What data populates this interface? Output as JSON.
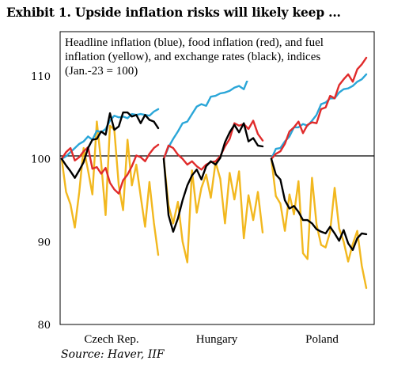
{
  "header": {
    "title": "Exhibit 1. Upside inflation risks will likely keep ..."
  },
  "footer": {
    "source": "Source: Haver, IIF"
  },
  "chart_data": {
    "type": "line",
    "title": "Headline inflation (blue), food inflation (red), and fuel inflation (yellow), and exchange rates (black), indices (Jan.-23 = 100)",
    "title_lines": [
      "Headline inflation (blue), food inflation (red),  and fuel",
      "inflation (yellow), and exchange rates (black), indices",
      "(Jan.-23 = 100)"
    ],
    "ylim": [
      80,
      110
    ],
    "yticks": [
      80,
      90,
      100,
      110
    ],
    "baseline": 100,
    "grid": false,
    "categories": [
      "Czech Rep.",
      "Hungary",
      "Poland"
    ],
    "series_colors": {
      "headline": "#2aa6d8",
      "food": "#e02b2b",
      "fuel": "#f2b81f",
      "fx": "#000000"
    },
    "panels": [
      {
        "category": "Czech Rep.",
        "headline": [
          100,
          100.3,
          100.8,
          101.3,
          101.8,
          102.1,
          102.7,
          102.3,
          103.4,
          103.2,
          103.6,
          104.6,
          105.2,
          105.0,
          105.1,
          104.9,
          105.4,
          105.3,
          105.4,
          105.3,
          105.2,
          105.7,
          106.0
        ],
        "food": [
          100,
          100.8,
          101.3,
          99.8,
          100.2,
          100.9,
          101.4,
          98.8,
          99.0,
          98.2,
          98.9,
          97.1,
          96.3,
          95.8,
          97.4,
          98.1,
          99.1,
          100.4,
          100.2,
          99.7,
          100.6,
          101.3,
          101.7
        ],
        "fuel": [
          100,
          96.0,
          94.5,
          91.7,
          96.0,
          101.3,
          98.6,
          95.7,
          104.5,
          99.5,
          93.2,
          104.0,
          103.5,
          96.8,
          93.8,
          102.3,
          96.8,
          99.3,
          95.5,
          91.8,
          97.2,
          92.3,
          88.4
        ],
        "fx": [
          100,
          99.2,
          98.5,
          97.7,
          98.6,
          99.6,
          101.3,
          102.3,
          102.4,
          103.3,
          102.9,
          105.5,
          103.5,
          103.9,
          105.6,
          105.6,
          105.1,
          105.3,
          104.3,
          105.3,
          104.7,
          104.5,
          103.7
        ]
      },
      {
        "category": "Hungary",
        "headline": [
          100,
          101.4,
          102.4,
          103.3,
          104.3,
          104.5,
          105.4,
          106.3,
          106.6,
          106.4,
          107.5,
          107.6,
          107.9,
          108.0,
          108.2,
          108.6,
          108.8,
          108.4,
          109.8,
          110.4,
          110.7,
          111.0
        ],
        "food": [
          100,
          101.6,
          101.3,
          100.5,
          100.0,
          99.3,
          99.7,
          99.1,
          98.7,
          99.3,
          99.6,
          99.7,
          100.3,
          101.5,
          102.4,
          104.3,
          104.0,
          104.2,
          103.6,
          104.6,
          103.0,
          102.2
        ],
        "fuel": [
          100,
          94.4,
          92.2,
          94.8,
          90.0,
          87.5,
          98.6,
          93.5,
          96.5,
          98.1,
          95.3,
          99.6,
          97.6,
          92.2,
          98.3,
          95.1,
          98.5,
          90.4,
          95.6,
          92.6,
          96.0,
          91.1
        ],
        "fx": [
          100,
          93.2,
          91.2,
          92.8,
          95.0,
          96.8,
          98.0,
          98.7,
          97.5,
          99.1,
          99.7,
          99.3,
          100.1,
          102.0,
          103.2,
          104.1,
          103.2,
          104.3,
          102.1,
          102.5,
          101.6,
          101.5
        ]
      },
      {
        "category": "Poland",
        "headline": [
          100,
          101.2,
          101.3,
          102.1,
          102.7,
          103.8,
          103.8,
          104.2,
          104.0,
          104.6,
          105.3,
          106.6,
          106.8,
          107.3,
          107.3,
          108.0,
          108.4,
          108.5,
          108.8,
          109.3,
          109.6,
          110.2
        ],
        "food": [
          100,
          100.6,
          100.9,
          101.8,
          103.3,
          103.8,
          104.5,
          103.1,
          104.1,
          104.4,
          104.3,
          106.0,
          106.2,
          107.6,
          107.3,
          108.9,
          109.6,
          110.2,
          109.3,
          110.8,
          111.4,
          112.2
        ],
        "fuel": [
          100,
          95.5,
          94.6,
          91.3,
          95.7,
          93.3,
          97.3,
          88.6,
          87.9,
          97.7,
          92.1,
          89.6,
          89.3,
          91.2,
          96.5,
          91.6,
          90.0,
          87.6,
          89.7,
          91.3,
          87.1,
          84.4
        ],
        "fx": [
          100,
          98.1,
          97.5,
          95.0,
          94.0,
          94.3,
          93.6,
          92.6,
          92.6,
          92.2,
          91.5,
          91.2,
          91.0,
          91.8,
          91.0,
          90.1,
          91.4,
          89.8,
          89.0,
          90.4,
          91.0,
          90.9
        ]
      }
    ]
  }
}
